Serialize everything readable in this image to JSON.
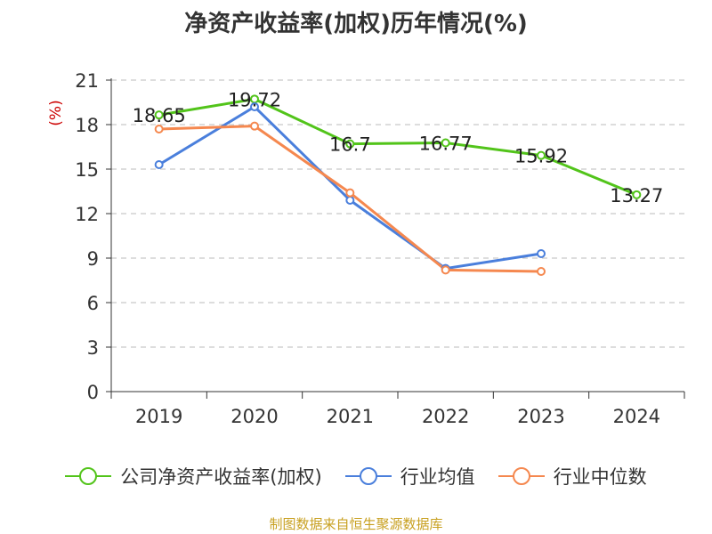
{
  "source_text": "制图数据来自恒生聚源数据库",
  "colors": {
    "axis": "#333333",
    "grid": "#bbbbbb",
    "unit": "#cc0000",
    "source": "#c8a020"
  },
  "chart_data": {
    "type": "line",
    "title": "净资产收益率(加权)历年情况(%)",
    "ylabel": "(%)",
    "xlabel": "",
    "categories": [
      "2019",
      "2020",
      "2021",
      "2022",
      "2023",
      "2024"
    ],
    "ylim": [
      0,
      21
    ],
    "yticks": [
      0,
      3,
      6,
      9,
      12,
      15,
      18,
      21
    ],
    "grid": true,
    "legend_position": "bottom",
    "series": [
      {
        "name": "公司净资产收益率(加权)",
        "color": "#52c41a",
        "values": [
          18.65,
          19.72,
          16.7,
          16.77,
          15.92,
          13.27
        ],
        "labels": [
          "18.65",
          "19.72",
          "16.7",
          "16.77",
          "15.92",
          "13.27"
        ],
        "show_labels": true
      },
      {
        "name": "行业均值",
        "color": "#4a7fdc",
        "values": [
          15.3,
          19.2,
          12.9,
          8.3,
          9.3,
          null
        ],
        "show_labels": false
      },
      {
        "name": "行业中位数",
        "color": "#f5884f",
        "values": [
          17.7,
          17.9,
          13.4,
          8.2,
          8.1,
          null
        ],
        "show_labels": false
      }
    ]
  }
}
